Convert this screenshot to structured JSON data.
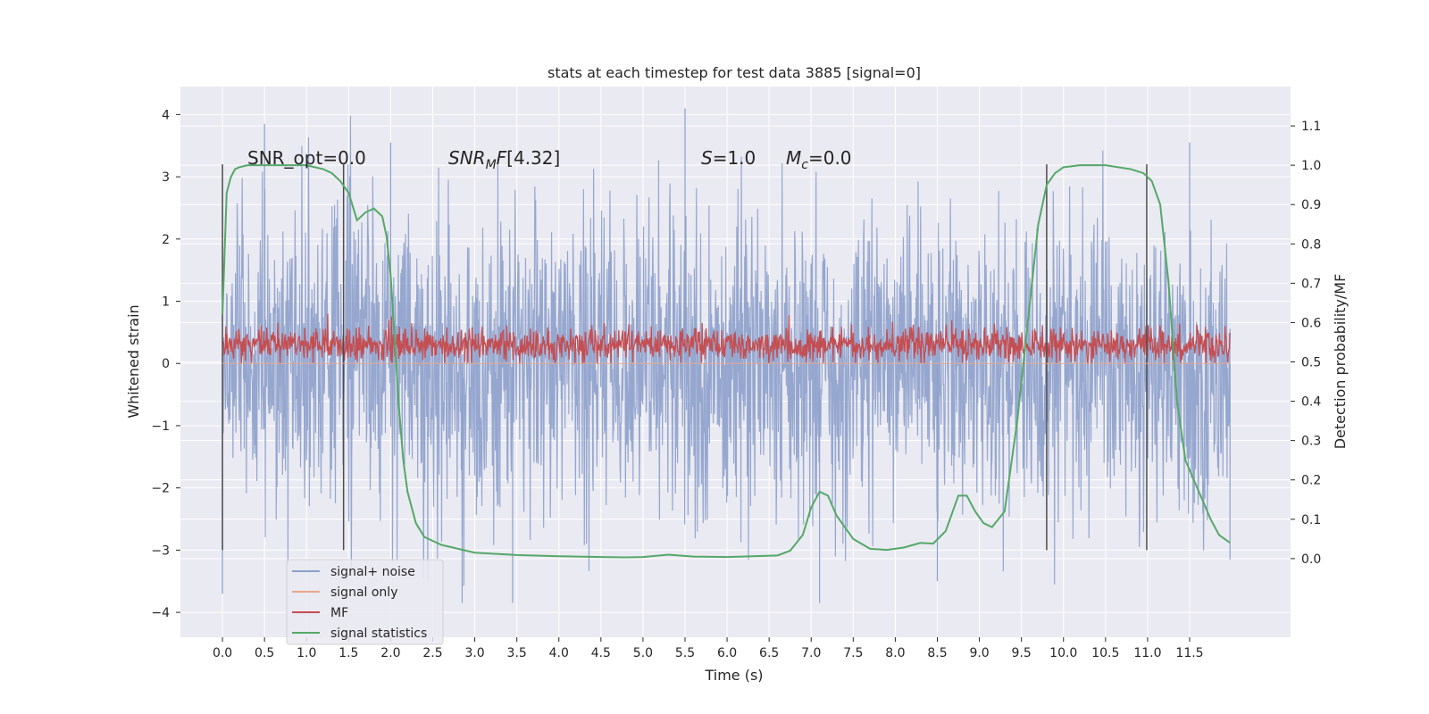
{
  "chart_data": {
    "type": "line",
    "title": "stats at each timestep for test data 3885 [signal=0]",
    "xlabel": "Time (s)",
    "ylabel_left": "Whitened strain",
    "ylabel_right": "Detection probability/MF",
    "xlim": [
      -0.5,
      12.7
    ],
    "ylim_left": [
      -4.4,
      4.45
    ],
    "ylim_right": [
      -0.2,
      1.2
    ],
    "x_ticks": [
      "0.0",
      "0.5",
      "1.0",
      "1.5",
      "2.0",
      "2.5",
      "3.0",
      "3.5",
      "4.0",
      "4.5",
      "5.0",
      "5.5",
      "6.0",
      "6.5",
      "7.0",
      "7.5",
      "8.0",
      "8.5",
      "9.0",
      "9.5",
      "10.0",
      "10.5",
      "11.0",
      "11.5"
    ],
    "y_left_ticks": [
      "4",
      "3",
      "2",
      "1",
      "0",
      "−1",
      "−2",
      "−3",
      "−4"
    ],
    "y_right_ticks": [
      "1.1",
      "1.0",
      "0.9",
      "0.8",
      "0.7",
      "0.6",
      "0.5",
      "0.4",
      "0.3",
      "0.2",
      "0.1",
      "0.0"
    ],
    "annotations": {
      "snr_opt": "SNR_opt=0.0",
      "snr_mf": "[4.32]",
      "s": "=1.0",
      "mc": "=0.0"
    },
    "vertical_lines_x": [
      0.0,
      1.44,
      9.8,
      10.99
    ],
    "series": [
      {
        "name": "signal+ noise",
        "color": "#8da0cb",
        "axis": "left",
        "x_range": [
          0.0,
          11.98
        ],
        "envelope_upper": [
          2.2,
          2.0,
          2.3,
          2.6,
          2.2,
          2.0,
          2.2,
          2.3,
          2.4,
          2.1,
          2.0,
          2.1,
          2.3,
          2.2,
          2.0,
          2.1,
          2.2,
          2.0,
          2.1,
          2.3,
          2.2,
          2.0,
          2.1,
          2.2
        ],
        "envelope_lower": [
          -2.1,
          -2.0,
          -2.2,
          -2.1,
          -2.0,
          -2.3,
          -2.4,
          -2.2,
          -2.0,
          -2.1,
          -2.2,
          -2.3,
          -2.2,
          -2.0,
          -2.4,
          -2.1,
          -2.0,
          -2.2,
          -2.4,
          -2.2,
          -2.0,
          -2.1,
          -2.2,
          -2.3
        ],
        "spikes": [
          [
            0.5,
            3.85
          ],
          [
            2.0,
            3.55
          ],
          [
            5.5,
            4.1
          ],
          [
            11.5,
            3.55
          ],
          [
            0.0,
            -3.7
          ],
          [
            2.85,
            -3.85
          ],
          [
            3.45,
            -3.85
          ],
          [
            7.1,
            -3.85
          ],
          [
            8.5,
            -3.5
          ],
          [
            11.98,
            -3.15
          ]
        ]
      },
      {
        "name": "signal only",
        "color": "#e9a78a",
        "axis": "left",
        "x": [
          0.0,
          11.98
        ],
        "y": [
          0.0,
          0.0
        ]
      },
      {
        "name": "MF",
        "color": "#c44e52",
        "axis": "left",
        "x_range": [
          0.0,
          11.98
        ],
        "band_center": 0.3,
        "band_min": 0.0,
        "band_max": 0.8
      },
      {
        "name": "signal statistics",
        "color": "#55a868",
        "axis": "right",
        "x": [
          0.0,
          0.05,
          0.1,
          0.15,
          0.2,
          0.3,
          0.5,
          0.8,
          1.0,
          1.1,
          1.2,
          1.3,
          1.4,
          1.5,
          1.6,
          1.7,
          1.8,
          1.9,
          1.95,
          2.0,
          2.05,
          2.1,
          2.15,
          2.2,
          2.3,
          2.4,
          2.6,
          2.8,
          3.0,
          3.5,
          4.0,
          4.5,
          4.8,
          5.0,
          5.3,
          5.6,
          6.0,
          6.3,
          6.6,
          6.75,
          6.9,
          7.0,
          7.1,
          7.2,
          7.3,
          7.5,
          7.7,
          7.9,
          8.1,
          8.3,
          8.45,
          8.6,
          8.75,
          8.85,
          8.95,
          9.05,
          9.15,
          9.3,
          9.45,
          9.55,
          9.7,
          9.8,
          9.9,
          10.0,
          10.2,
          10.5,
          10.8,
          10.95,
          11.05,
          11.15,
          11.25,
          11.35,
          11.45,
          11.55,
          11.65,
          11.75,
          11.85,
          11.98
        ],
        "y": [
          0.62,
          0.93,
          0.97,
          0.99,
          0.995,
          1.0,
          1.0,
          1.0,
          1.0,
          0.995,
          0.99,
          0.98,
          0.96,
          0.93,
          0.86,
          0.88,
          0.89,
          0.87,
          0.82,
          0.72,
          0.55,
          0.38,
          0.25,
          0.17,
          0.09,
          0.055,
          0.035,
          0.025,
          0.015,
          0.009,
          0.006,
          0.004,
          0.003,
          0.004,
          0.01,
          0.005,
          0.004,
          0.006,
          0.008,
          0.02,
          0.06,
          0.13,
          0.17,
          0.16,
          0.11,
          0.05,
          0.025,
          0.022,
          0.028,
          0.04,
          0.038,
          0.07,
          0.16,
          0.16,
          0.12,
          0.09,
          0.08,
          0.12,
          0.35,
          0.55,
          0.85,
          0.95,
          0.98,
          0.995,
          1.0,
          1.0,
          0.99,
          0.98,
          0.96,
          0.9,
          0.7,
          0.4,
          0.25,
          0.2,
          0.15,
          0.1,
          0.06,
          0.04
        ]
      }
    ],
    "legend": {
      "placement": "lower-left",
      "entries": [
        "signal+ noise",
        "signal only",
        "MF",
        "signal statistics"
      ]
    }
  },
  "colors": {
    "plot_bg": "#eaeaf2",
    "grid": "#ffffff",
    "vline": "#4c4c4c",
    "text": "#262626"
  }
}
